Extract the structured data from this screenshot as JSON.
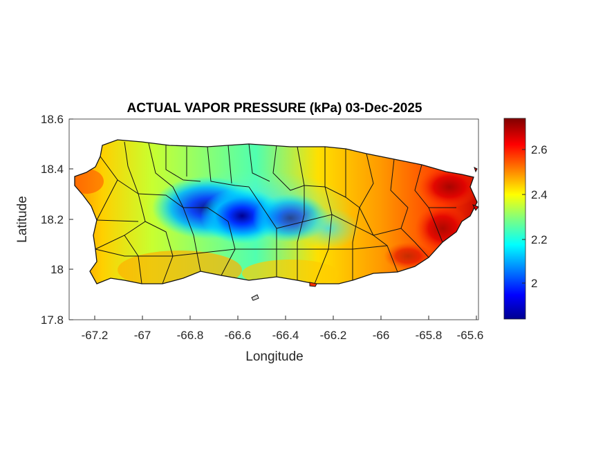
{
  "map": {
    "title": "ACTUAL VAPOR PRESSURE (kPa) 03-Dec-2025",
    "xlabel": "Longitude",
    "ylabel": "Latitude",
    "xlim": [
      -67.3,
      -65.58
    ],
    "ylim": [
      17.8,
      18.6
    ],
    "xticks": [
      "-67.2",
      "-67",
      "-66.8",
      "-66.6",
      "-66.4",
      "-66.2",
      "-66",
      "-65.8",
      "-65.6"
    ],
    "yticks": [
      "18.6",
      "18.4",
      "18.2",
      "18",
      "17.8"
    ],
    "colorbar": {
      "ticks": [
        "2.6",
        "2.4",
        "2.2",
        "2"
      ],
      "range": [
        1.84,
        2.74
      ],
      "colormap": "jet"
    },
    "region": "Puerto Rico",
    "gradient_note_colors": {
      "low": "#00008f",
      "mid": "#ffff00",
      "high": "#800000"
    }
  }
}
